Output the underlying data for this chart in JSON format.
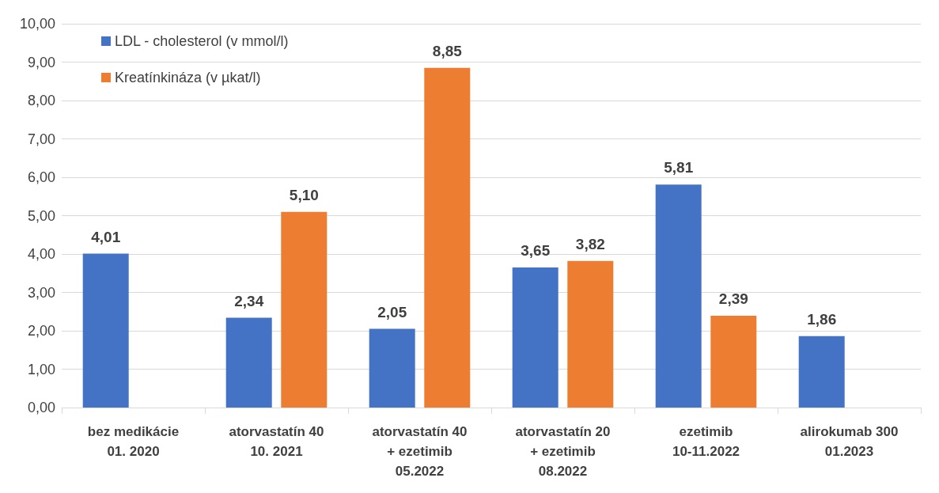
{
  "chart_data": {
    "type": "bar",
    "categories": [
      "bez medikácie\n01. 2020",
      "atorvastatín 40\n10. 2021",
      "atorvastatín 40\n+ ezetimib\n05.2022",
      "atorvastatín 20\n+ ezetimib\n08.2022",
      "ezetimib\n10-11.2022",
      "alirokumab 300\n01.2023"
    ],
    "series": [
      {
        "name": "LDL - cholesterol (v mmol/l)",
        "color": "#4472c4",
        "values": [
          4.01,
          2.34,
          2.05,
          3.65,
          5.81,
          1.86
        ],
        "value_labels": [
          "4,01",
          "2,34",
          "2,05",
          "3,65",
          "5,81",
          "1,86"
        ]
      },
      {
        "name": "Kreatínkináza (v µkat/l)",
        "color": "#ed7d31",
        "values": [
          null,
          5.1,
          8.85,
          3.82,
          2.39,
          null
        ],
        "value_labels": [
          null,
          "5,10",
          "8,85",
          "3,82",
          "2,39",
          null
        ]
      }
    ],
    "ylim": [
      0,
      10
    ],
    "yticks": [
      {
        "value": 0,
        "label": "0,00"
      },
      {
        "value": 1,
        "label": "1,00"
      },
      {
        "value": 2,
        "label": "2,00"
      },
      {
        "value": 3,
        "label": "3,00"
      },
      {
        "value": 4,
        "label": "4,00"
      },
      {
        "value": 5,
        "label": "5,00"
      },
      {
        "value": 6,
        "label": "6,00"
      },
      {
        "value": 7,
        "label": "7,00"
      },
      {
        "value": 8,
        "label": "8,00"
      },
      {
        "value": 9,
        "label": "9,00"
      },
      {
        "value": 10,
        "label": "10,00"
      }
    ],
    "grid": "y",
    "legend": "top left"
  }
}
